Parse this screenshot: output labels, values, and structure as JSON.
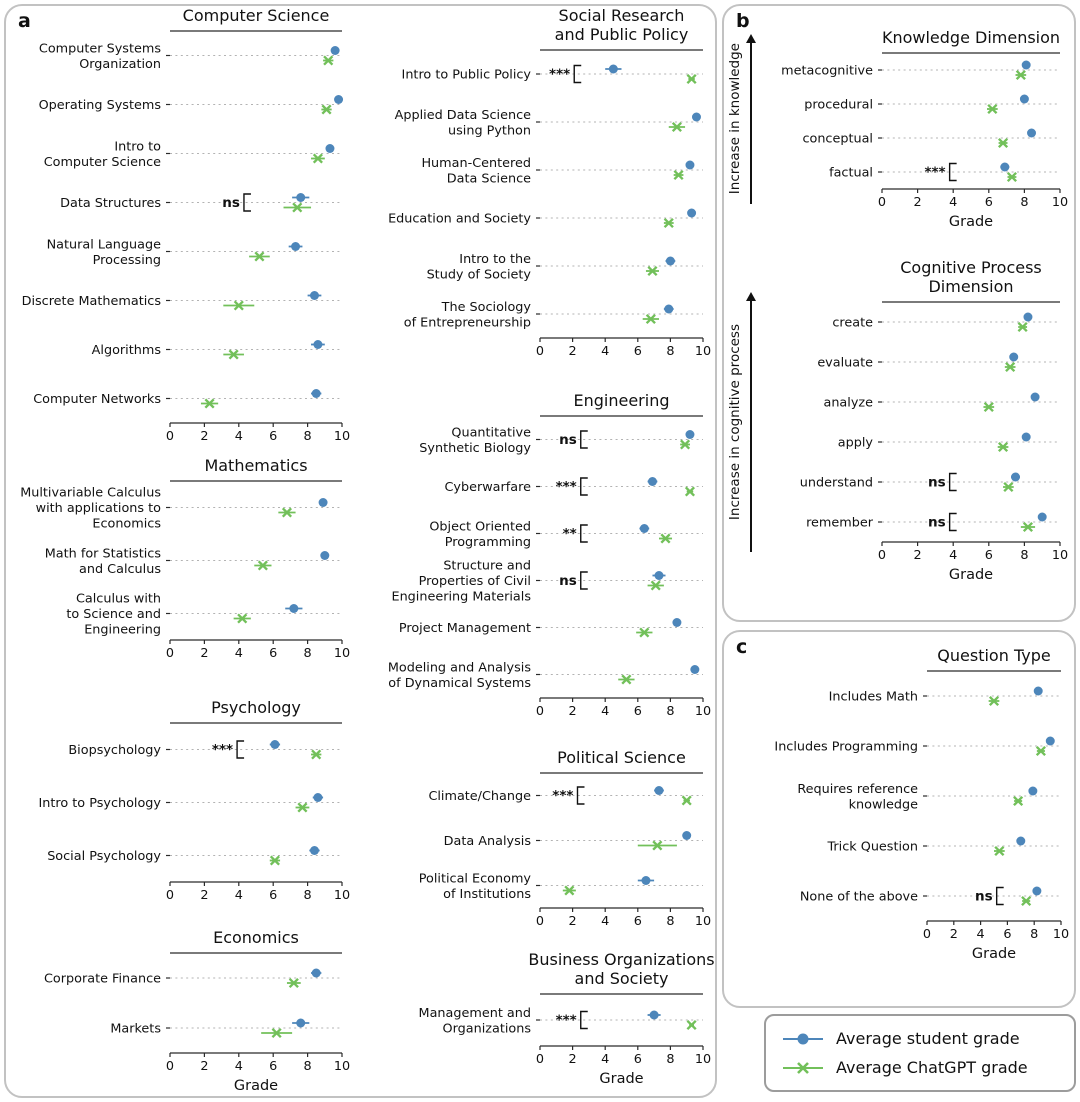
{
  "style": {
    "student_color": "#4d86ba",
    "chatgpt_color": "#72c05a",
    "grid_color": "#b3b3b3",
    "axis_color": "#2a2a2a"
  },
  "panels": {
    "a": "a",
    "b": "b",
    "c": "c"
  },
  "arrows": {
    "knowledge": "Increase in knowledge",
    "cognitive": "Increase in cognitive process"
  },
  "legend": {
    "student": "Average student grade",
    "chatgpt": "Average ChatGPT grade"
  },
  "chart_data": [
    {
      "id": "computer-science",
      "type": "scatter",
      "title": "Computer Science",
      "xlabel": "",
      "xlim": [
        0,
        10
      ],
      "xticks": [
        0,
        2,
        4,
        6,
        8,
        10
      ],
      "categories": [
        "Computer Systems\nOrganization",
        "Operating Systems",
        "Intro to\nComputer Science",
        "Data Structures",
        "Natural Language\nProcessing",
        "Discrete Mathematics",
        "Algorithms",
        "Computer Networks"
      ],
      "series": [
        {
          "name": "Average student grade",
          "values": [
            9.6,
            9.8,
            9.3,
            7.6,
            7.3,
            8.4,
            8.6,
            8.5
          ],
          "err": [
            0.2,
            0.1,
            0.2,
            0.5,
            0.4,
            0.4,
            0.4,
            0.3
          ]
        },
        {
          "name": "Average ChatGPT grade",
          "values": [
            9.2,
            9.1,
            8.6,
            7.4,
            5.2,
            4.0,
            3.7,
            2.3
          ],
          "err": [
            0.3,
            0.3,
            0.4,
            0.8,
            0.6,
            0.9,
            0.6,
            0.5
          ]
        }
      ],
      "significance": [
        {
          "row": 3,
          "label": "ns",
          "x": 4.3
        }
      ]
    },
    {
      "id": "mathematics",
      "type": "scatter",
      "title": "Mathematics",
      "xlabel": "",
      "xlim": [
        0,
        10
      ],
      "xticks": [
        0,
        2,
        4,
        6,
        8,
        10
      ],
      "categories": [
        "Multivariable Calculus\nwith applications to\nEconomics",
        "Math for Statistics\nand Calculus",
        "Calculus with\nto Science and\nEngineering"
      ],
      "series": [
        {
          "name": "Average student grade",
          "values": [
            8.9,
            9.0,
            7.2
          ],
          "err": [
            0.2,
            0.2,
            0.5
          ]
        },
        {
          "name": "Average ChatGPT grade",
          "values": [
            6.8,
            5.4,
            4.2
          ],
          "err": [
            0.5,
            0.5,
            0.5
          ]
        }
      ],
      "significance": []
    },
    {
      "id": "psychology",
      "type": "scatter",
      "title": "Psychology",
      "xlabel": "",
      "xlim": [
        0,
        10
      ],
      "xticks": [
        0,
        2,
        4,
        6,
        8,
        10
      ],
      "categories": [
        "Biopsychology",
        "Intro to Psychology",
        "Social Psychology"
      ],
      "series": [
        {
          "name": "Average student grade",
          "values": [
            6.1,
            8.6,
            8.4
          ],
          "err": [
            0.3,
            0.3,
            0.3
          ]
        },
        {
          "name": "Average ChatGPT grade",
          "values": [
            8.5,
            7.7,
            6.1
          ],
          "err": [
            0.3,
            0.4,
            0.3
          ]
        }
      ],
      "significance": [
        {
          "row": 0,
          "label": "***",
          "x": 3.9
        }
      ]
    },
    {
      "id": "economics",
      "type": "scatter",
      "title": "Economics",
      "xlabel": "Grade",
      "xlim": [
        0,
        10
      ],
      "xticks": [
        0,
        2,
        4,
        6,
        8,
        10
      ],
      "categories": [
        "Corporate Finance",
        "Markets"
      ],
      "series": [
        {
          "name": "Average student grade",
          "values": [
            8.5,
            7.6
          ],
          "err": [
            0.3,
            0.5
          ]
        },
        {
          "name": "Average ChatGPT grade",
          "values": [
            7.2,
            6.2
          ],
          "err": [
            0.4,
            0.9
          ]
        }
      ],
      "significance": []
    },
    {
      "id": "social-research-and-public-policy",
      "type": "scatter",
      "title": [
        "Social Research",
        "and Public Policy"
      ],
      "xlabel": "",
      "xlim": [
        0,
        10
      ],
      "xticks": [
        0,
        2,
        4,
        6,
        8,
        10
      ],
      "categories": [
        "Intro to Public Policy",
        "Applied Data Science\nusing Python",
        "Human-Centered\nData Science",
        "Education and Society",
        "Intro to the\nStudy of Society",
        "The Sociology\nof Entrepreneurship"
      ],
      "series": [
        {
          "name": "Average student grade",
          "values": [
            4.5,
            9.6,
            9.2,
            9.3,
            8.0,
            7.9
          ],
          "err": [
            0.5,
            0.2,
            0.2,
            0.2,
            0.3,
            0.3
          ]
        },
        {
          "name": "Average ChatGPT grade",
          "values": [
            9.3,
            8.4,
            8.5,
            7.9,
            6.9,
            6.8
          ],
          "err": [
            0.2,
            0.5,
            0.3,
            0.3,
            0.4,
            0.5
          ]
        }
      ],
      "significance": [
        {
          "row": 0,
          "label": "***",
          "x": 2.1
        }
      ]
    },
    {
      "id": "engineering",
      "type": "scatter",
      "title": "Engineering",
      "xlabel": "",
      "xlim": [
        0,
        10
      ],
      "xticks": [
        0,
        2,
        4,
        6,
        8,
        10
      ],
      "categories": [
        "Quantitative\nSynthetic Biology",
        "Cyberwarfare",
        "Object Oriented\nProgramming",
        "Structure and\nProperties of Civil\nEngineering Materials",
        "Project Management",
        "Modeling and Analysis\nof Dynamical Systems"
      ],
      "series": [
        {
          "name": "Average student grade",
          "values": [
            9.2,
            6.9,
            6.4,
            7.3,
            8.4,
            9.5
          ],
          "err": [
            0.2,
            0.3,
            0.3,
            0.4,
            0.2,
            0.1
          ]
        },
        {
          "name": "Average ChatGPT grade",
          "values": [
            8.9,
            9.2,
            7.7,
            7.1,
            6.4,
            5.3
          ],
          "err": [
            0.3,
            0.2,
            0.4,
            0.5,
            0.5,
            0.5
          ]
        }
      ],
      "significance": [
        {
          "row": 0,
          "label": "ns",
          "x": 2.5
        },
        {
          "row": 1,
          "label": "***",
          "x": 2.5
        },
        {
          "row": 2,
          "label": "**",
          "x": 2.5
        },
        {
          "row": 3,
          "label": "ns",
          "x": 2.5
        }
      ]
    },
    {
      "id": "political-science",
      "type": "scatter",
      "title": "Political Science",
      "xlabel": "",
      "xlim": [
        0,
        10
      ],
      "xticks": [
        0,
        2,
        4,
        6,
        8,
        10
      ],
      "categories": [
        "Climate/Change",
        "Data Analysis",
        "Political Economy\nof Institutions"
      ],
      "series": [
        {
          "name": "Average student grade",
          "values": [
            7.3,
            9.0,
            6.5
          ],
          "err": [
            0.3,
            0.2,
            0.5
          ]
        },
        {
          "name": "Average ChatGPT grade",
          "values": [
            9.0,
            7.2,
            1.8
          ],
          "err": [
            0.2,
            1.2,
            0.4
          ]
        }
      ],
      "significance": [
        {
          "row": 0,
          "label": "***",
          "x": 2.3
        }
      ]
    },
    {
      "id": "business-organizations-and-society",
      "type": "scatter",
      "title": [
        "Business Organizations",
        "and Society"
      ],
      "xlabel": "Grade",
      "xlim": [
        0,
        10
      ],
      "xticks": [
        0,
        2,
        4,
        6,
        8,
        10
      ],
      "categories": [
        "Management and\nOrganizations"
      ],
      "series": [
        {
          "name": "Average student grade",
          "values": [
            7.0
          ],
          "err": [
            0.4
          ]
        },
        {
          "name": "Average ChatGPT grade",
          "values": [
            9.3
          ],
          "err": [
            0.15
          ]
        }
      ],
      "significance": [
        {
          "row": 0,
          "label": "***",
          "x": 2.5
        }
      ]
    },
    {
      "id": "knowledge-dimension",
      "type": "scatter",
      "title": "Knowledge Dimension",
      "xlabel": "Grade",
      "xlim": [
        0,
        10
      ],
      "xticks": [
        0,
        2,
        4,
        6,
        8,
        10
      ],
      "categories": [
        "metacognitive",
        "procedural",
        "conceptual",
        "factual"
      ],
      "series": [
        {
          "name": "Average student grade",
          "values": [
            8.1,
            8.0,
            8.4,
            6.9
          ],
          "err": [
            0.2,
            0.2,
            0.2,
            0.25
          ]
        },
        {
          "name": "Average ChatGPT grade",
          "values": [
            7.8,
            6.2,
            6.8,
            7.3
          ],
          "err": [
            0.3,
            0.3,
            0.25,
            0.25
          ]
        }
      ],
      "significance": [
        {
          "row": 3,
          "label": "***",
          "x": 3.8
        }
      ]
    },
    {
      "id": "cognitive-process-dimension",
      "type": "scatter",
      "title": [
        "Cognitive Process",
        "Dimension"
      ],
      "xlabel": "Grade",
      "xlim": [
        0,
        10
      ],
      "xticks": [
        0,
        2,
        4,
        6,
        8,
        10
      ],
      "categories": [
        "create",
        "evaluate",
        "analyze",
        "apply",
        "understand",
        "remember"
      ],
      "series": [
        {
          "name": "Average student grade",
          "values": [
            8.2,
            7.4,
            8.6,
            8.1,
            7.5,
            9.0
          ],
          "err": [
            0.2,
            0.2,
            0.2,
            0.2,
            0.25,
            0.2
          ]
        },
        {
          "name": "Average ChatGPT grade",
          "values": [
            7.9,
            7.2,
            6.0,
            6.8,
            7.1,
            8.2
          ],
          "err": [
            0.25,
            0.3,
            0.3,
            0.3,
            0.3,
            0.4
          ]
        }
      ],
      "significance": [
        {
          "row": 4,
          "label": "ns",
          "x": 3.8
        },
        {
          "row": 5,
          "label": "ns",
          "x": 3.8
        }
      ]
    },
    {
      "id": "question-type",
      "type": "scatter",
      "title": "Question Type",
      "xlabel": "Grade",
      "xlim": [
        0,
        10
      ],
      "xticks": [
        0,
        2,
        4,
        6,
        8,
        10
      ],
      "categories": [
        "Includes Math",
        "Includes Programming",
        "Requires reference\nknowledge",
        "Trick Question",
        "None of the above"
      ],
      "series": [
        {
          "name": "Average student grade",
          "values": [
            8.3,
            9.2,
            7.9,
            7.0,
            8.2
          ],
          "err": [
            0.3,
            0.2,
            0.25,
            0.3,
            0.2
          ]
        },
        {
          "name": "Average ChatGPT grade",
          "values": [
            5.0,
            8.5,
            6.8,
            5.4,
            7.4
          ],
          "err": [
            0.4,
            0.3,
            0.3,
            0.4,
            0.3
          ]
        }
      ],
      "significance": [
        {
          "row": 4,
          "label": "ns",
          "x": 5.2
        }
      ]
    }
  ]
}
